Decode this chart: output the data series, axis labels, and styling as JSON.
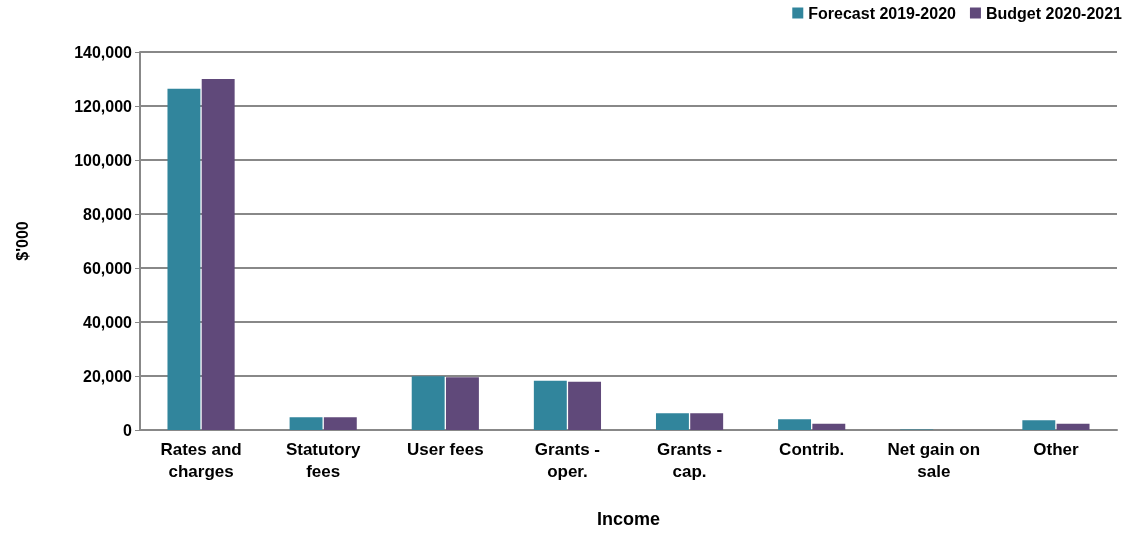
{
  "chart_data": {
    "type": "bar",
    "xlabel": "Income",
    "ylabel": "$'000",
    "categories": [
      "Rates and\ncharges",
      "Statutory\nfees",
      "User fees",
      "Grants -\noper.",
      "Grants -\ncap.",
      "Contrib.",
      "Net gain on\nsale",
      "Other"
    ],
    "series": [
      {
        "name": "Forecast 2019-2020",
        "color": "#31859c",
        "values": [
          126400,
          4700,
          19900,
          18200,
          6200,
          4000,
          200,
          3600
        ]
      },
      {
        "name": "Budget 2020-2021",
        "color": "#60497a",
        "values": [
          130000,
          4700,
          19500,
          17900,
          6200,
          2300,
          0,
          2300
        ]
      }
    ],
    "ylim": [
      0,
      140000
    ],
    "yticks": [
      0,
      {
        "value": 20000,
        "label": "20,000"
      },
      {
        "value": 40000,
        "label": "40,000"
      },
      {
        "value": 60000,
        "label": "60,000"
      },
      {
        "value": 80000,
        "label": "80,000"
      },
      {
        "value": 100000,
        "label": "100,000"
      },
      {
        "value": 120000,
        "label": "120,000"
      },
      {
        "value": 140000,
        "label": "140,000"
      }
    ],
    "grid": "y",
    "legend": "top right"
  }
}
